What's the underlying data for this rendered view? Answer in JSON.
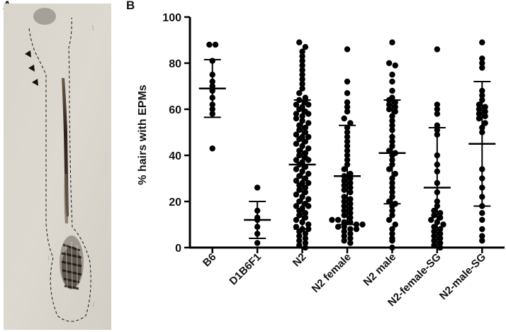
{
  "figure": {
    "panel_a_label": "A",
    "panel_b_label": "B"
  },
  "micrograph": {
    "description_icon": "hair-follicle-micrograph",
    "arrowhead_count": 3
  },
  "chart_data": {
    "type": "scatter",
    "ylabel": "% hairs with EPMs",
    "xlabel": "",
    "ylim": [
      0,
      100
    ],
    "yticks": [
      0,
      20,
      40,
      60,
      80,
      100
    ],
    "categories": [
      "B6",
      "D1B6F1",
      "N2",
      "N2 female",
      "N2 male",
      "N2-female-SG",
      "N2-male-SG"
    ],
    "groups": [
      {
        "name": "B6",
        "mean": 69,
        "sd_low": 56.5,
        "sd_high": 81.5,
        "points": [
          88,
          88,
          81,
          75,
          72,
          70,
          68,
          65,
          62,
          60,
          58,
          43
        ]
      },
      {
        "name": "D1B6F1",
        "mean": 12,
        "sd_low": 4,
        "sd_high": 20,
        "points": [
          26,
          16,
          13,
          12,
          9,
          6,
          2
        ]
      },
      {
        "name": "N2",
        "mean": 36,
        "sd_low": 8,
        "sd_high": 64,
        "points": [
          89,
          87,
          85,
          83,
          81,
          79,
          77,
          75,
          73,
          71,
          69,
          67,
          65,
          64,
          63,
          62,
          61,
          60,
          59,
          58,
          57,
          56,
          55,
          54,
          53,
          52,
          51,
          50,
          49,
          48,
          47,
          46,
          45,
          44,
          43,
          42,
          41,
          40,
          39,
          38,
          37,
          36,
          35,
          34,
          33,
          32,
          31,
          30,
          29,
          28,
          27,
          26,
          25,
          24,
          23,
          22,
          21,
          20,
          19,
          18,
          17,
          16,
          15,
          14,
          13,
          12,
          11,
          10,
          9,
          8,
          7,
          6,
          5,
          4,
          3,
          2,
          1,
          0,
          62,
          58,
          48,
          38,
          28,
          18,
          8
        ]
      },
      {
        "name": "N2 female",
        "mean": 31,
        "sd_low": 10,
        "sd_high": 53,
        "points": [
          86,
          72,
          67,
          63,
          61,
          59,
          56,
          54,
          52,
          50,
          48,
          46,
          44,
          42,
          40,
          38,
          36,
          34,
          32,
          31,
          30,
          29,
          28,
          27,
          26,
          25,
          24,
          22,
          21,
          20,
          19,
          18,
          17,
          16,
          15,
          14,
          13,
          12,
          12,
          11,
          11,
          10,
          10,
          9,
          9,
          8,
          8,
          7,
          6,
          5,
          4,
          3,
          2
        ]
      },
      {
        "name": "N2 male",
        "mean": 41,
        "sd_low": 19,
        "sd_high": 64,
        "points": [
          89,
          80,
          79,
          75,
          72,
          68,
          65,
          64,
          63,
          62,
          61,
          60,
          59,
          57,
          55,
          53,
          51,
          48,
          46,
          44,
          42,
          41,
          40,
          38,
          36,
          34,
          32,
          30,
          28,
          26,
          24,
          22,
          20,
          19,
          18,
          16,
          14,
          12,
          10,
          8,
          6,
          4,
          3,
          0
        ]
      },
      {
        "name": "N2-female-SG",
        "mean": 26,
        "sd_low": 0,
        "sd_high": 52,
        "points": [
          86,
          62,
          60,
          58,
          53,
          51,
          49,
          40,
          36,
          33,
          28,
          24,
          20,
          18,
          16,
          15,
          14,
          13,
          12,
          11,
          10,
          9,
          8,
          7,
          6,
          5,
          4,
          3,
          2,
          1,
          0
        ]
      },
      {
        "name": "N2-male-SG",
        "mean": 45,
        "sd_low": 18,
        "sd_high": 72,
        "points": [
          89,
          82,
          80,
          78,
          68,
          66,
          64,
          62,
          61,
          60,
          59,
          58,
          57,
          56,
          54,
          52,
          50,
          34,
          30,
          26,
          22,
          18,
          15,
          12,
          8,
          5,
          3
        ]
      }
    ]
  }
}
